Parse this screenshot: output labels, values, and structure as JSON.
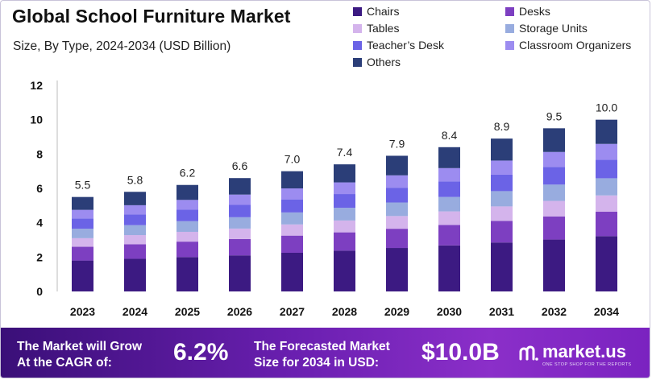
{
  "header": {
    "title": "Global School Furniture Market",
    "subtitle": "Size, By Type, 2024-2034 (USD Billion)"
  },
  "chart_data": {
    "type": "stacked-bar",
    "title": "Global School Furniture Market",
    "subtitle": "Size, By Type, 2024-2034 (USD Billion)",
    "categories": [
      "2023",
      "2024",
      "2025",
      "2026",
      "2027",
      "2028",
      "2029",
      "2030",
      "2031",
      "2032",
      "2034"
    ],
    "totals": [
      "5.5",
      "5.8",
      "6.2",
      "6.6",
      "7.0",
      "7.4",
      "7.9",
      "8.4",
      "8.9",
      "9.5",
      "10.0"
    ],
    "ylim": [
      0,
      12
    ],
    "yticks": [
      "0",
      "2",
      "4",
      "6",
      "8",
      "10",
      "12"
    ],
    "grid": false,
    "legend_position": "top-right",
    "series": [
      {
        "name": "Chairs",
        "color": "#3c1a82",
        "values": [
          1.8,
          1.9,
          2.0,
          2.1,
          2.25,
          2.38,
          2.53,
          2.68,
          2.85,
          3.02,
          3.22
        ]
      },
      {
        "name": "Desks",
        "color": "#7d3fc1",
        "values": [
          0.8,
          0.85,
          0.9,
          0.95,
          1.0,
          1.06,
          1.12,
          1.19,
          1.26,
          1.35,
          1.42
        ]
      },
      {
        "name": "Tables",
        "color": "#d4b4ec",
        "values": [
          0.5,
          0.53,
          0.57,
          0.61,
          0.65,
          0.69,
          0.74,
          0.79,
          0.84,
          0.9,
          0.95
        ]
      },
      {
        "name": "Storage Units",
        "color": "#98acdf",
        "values": [
          0.55,
          0.58,
          0.62,
          0.66,
          0.7,
          0.74,
          0.79,
          0.84,
          0.89,
          0.95,
          1.0
        ]
      },
      {
        "name": "Teacher’s Desk",
        "color": "#6b63e6",
        "values": [
          0.6,
          0.63,
          0.67,
          0.72,
          0.76,
          0.8,
          0.86,
          0.91,
          0.96,
          1.03,
          1.08
        ]
      },
      {
        "name": "Classroom Organizers",
        "color": "#9c8cf0",
        "values": [
          0.5,
          0.53,
          0.57,
          0.6,
          0.64,
          0.68,
          0.72,
          0.77,
          0.82,
          0.87,
          0.92
        ]
      },
      {
        "name": "Others",
        "color": "#2b3e78",
        "values": [
          0.75,
          0.78,
          0.87,
          0.96,
          1.0,
          1.05,
          1.14,
          1.22,
          1.28,
          1.38,
          1.41
        ]
      }
    ]
  },
  "footer": {
    "cagr_label_line1": "The Market will Grow",
    "cagr_label_line2": "At the CAGR of:",
    "cagr_value": "6.2%",
    "forecast_label_line1": "The Forecasted Market",
    "forecast_label_line2": "Size for 2034 in USD:",
    "forecast_value": "$10.0B",
    "brand_name": "market.us",
    "brand_tagline": "ONE STOP SHOP FOR THE REPORTS"
  }
}
